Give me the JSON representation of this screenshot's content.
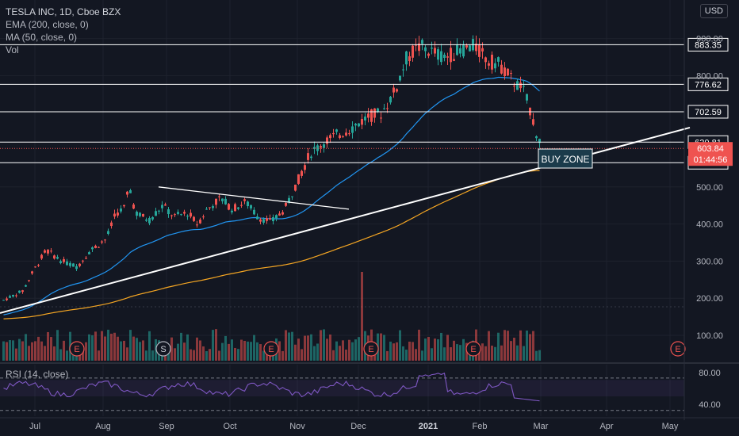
{
  "header": {
    "symbol_line": "TESLA INC, 1D, Cboe BZX",
    "indicators": [
      "EMA (200, close, 0)",
      "MA (50, close, 0)",
      "Vol"
    ],
    "currency_button": "USD"
  },
  "rsi_panel": {
    "label": "RSI (14, close)",
    "ticks": [
      "80.00",
      "40.00"
    ]
  },
  "colors": {
    "background": "#131722",
    "grid": "#1e222d",
    "up": "#26a69a",
    "down": "#ef5350",
    "ema": "#f5a623",
    "ma": "#2196f3",
    "trend": "#ffffff",
    "rsi": "#7e57c2"
  },
  "chart_data": {
    "type": "candlestick",
    "y_axis_ticks": [
      "900.00",
      "800.00",
      "500.00",
      "400.00",
      "300.00",
      "200.00",
      "100.00"
    ],
    "x_axis_labels": [
      "Jul",
      "Aug",
      "Sep",
      "Oct",
      "Nov",
      "Dec",
      "2021",
      "Feb",
      "Mar",
      "Apr",
      "May"
    ],
    "horizontal_levels": [
      "883.35",
      "776.62",
      "702.59",
      "620.81",
      "565.28"
    ],
    "current_price": "603.84",
    "countdown": "01:44:56",
    "annotation": "BUY ZONE",
    "events": [
      "E",
      "S",
      "E",
      "E",
      "E",
      "E"
    ],
    "price_path": [
      [
        0,
        195
      ],
      [
        10,
        220
      ],
      [
        15,
        270
      ],
      [
        22,
        330
      ],
      [
        30,
        300
      ],
      [
        38,
        285
      ],
      [
        45,
        330
      ],
      [
        53,
        360
      ],
      [
        58,
        430
      ],
      [
        62,
        440
      ],
      [
        65,
        500
      ],
      [
        68,
        430
      ],
      [
        75,
        410
      ],
      [
        82,
        450
      ],
      [
        88,
        420
      ],
      [
        95,
        430
      ],
      [
        100,
        400
      ],
      [
        105,
        440
      ],
      [
        112,
        470
      ],
      [
        118,
        440
      ],
      [
        125,
        460
      ],
      [
        131,
        420
      ],
      [
        138,
        405
      ],
      [
        145,
        440
      ],
      [
        152,
        520
      ],
      [
        158,
        590
      ],
      [
        165,
        620
      ],
      [
        172,
        640
      ],
      [
        180,
        660
      ],
      [
        188,
        690
      ],
      [
        195,
        700
      ],
      [
        202,
        760
      ],
      [
        208,
        850
      ],
      [
        215,
        880
      ],
      [
        222,
        860
      ],
      [
        228,
        850
      ],
      [
        236,
        870
      ],
      [
        243,
        880
      ],
      [
        250,
        840
      ],
      [
        256,
        830
      ],
      [
        262,
        790
      ],
      [
        268,
        760
      ],
      [
        272,
        700
      ],
      [
        275,
        640
      ],
      [
        278,
        604
      ]
    ]
  }
}
